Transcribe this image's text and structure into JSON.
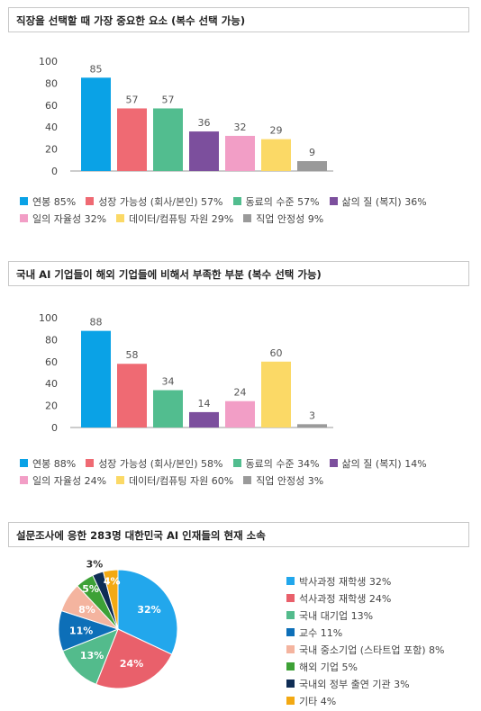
{
  "colors": [
    "#0aa2e6",
    "#ef6a73",
    "#52bd8f",
    "#7c4f9d",
    "#f29ec6",
    "#fbd966",
    "#9a9a9a"
  ],
  "pie_colors": [
    "#22a7ec",
    "#e9606b",
    "#53bb8c",
    "#0d6fb8",
    "#f4b49f",
    "#3da136",
    "#0f2d55",
    "#f3a913"
  ],
  "chart_data": [
    {
      "type": "bar",
      "title": "직장을 선택할 때 가장 중요한 요소 (복수 선택 가능)",
      "categories": [
        "연봉",
        "성장 가능성 (회사/본인)",
        "동료의 수준",
        "삶의 질 (복지)",
        "일의 자율성",
        "데이터/컴퓨팅 자원",
        "직업 안정성"
      ],
      "values": [
        85,
        57,
        57,
        36,
        32,
        29,
        9
      ],
      "value_labels": [
        "85",
        "57",
        "57",
        "36",
        "32",
        "29",
        "9"
      ],
      "yticks": [
        "100",
        "80",
        "60",
        "40",
        "20",
        "0"
      ],
      "ylim": [
        0,
        100
      ],
      "legend": [
        [
          "연봉 85%",
          "성장 가능성 (회사/본인) 57%",
          "동료의 수준 57%",
          "삶의 질 (복지) 36%"
        ],
        [
          "일의 자율성 32%",
          "데이터/컴퓨팅 자원 29%",
          "직업 안정성 9%"
        ]
      ]
    },
    {
      "type": "bar",
      "title": "국내 AI 기업들이 해외 기업들에 비해서 부족한 부분 (복수 선택 가능)",
      "categories": [
        "연봉",
        "성장 가능성 (회사/본인)",
        "동료의 수준",
        "삶의 질 (복지)",
        "일의 자율성",
        "데이터/컴퓨팅 자원",
        "직업 안정성"
      ],
      "values": [
        88,
        58,
        34,
        14,
        24,
        60,
        3
      ],
      "value_labels": [
        "88",
        "58",
        "34",
        "14",
        "24",
        "60",
        "3"
      ],
      "yticks": [
        "100",
        "80",
        "60",
        "40",
        "20",
        "0"
      ],
      "ylim": [
        0,
        100
      ],
      "legend": [
        [
          "연봉 88%",
          "성장 가능성 (회사/본인) 58%",
          "동료의 수준 34%",
          "삶의 질 (복지) 14%"
        ],
        [
          "일의 자율성 24%",
          "데이터/컴퓨팅 자원 60%",
          "직업 안정성 3%"
        ]
      ]
    },
    {
      "type": "pie",
      "title": "설문조사에 응한 283명 대한민국 AI 인재들의 현재 소속",
      "categories": [
        "박사과정 재학생",
        "석사과정 재학생",
        "국내 대기업",
        "교수",
        "국내 중소기업 (스타트업 포함)",
        "해외 기업",
        "국내외 정부 출연 기관",
        "기타"
      ],
      "values": [
        32,
        24,
        13,
        11,
        8,
        5,
        3,
        4
      ],
      "slice_labels": [
        "32%",
        "24%",
        "13%",
        "11%",
        "8%",
        "5%",
        "3%",
        "4%"
      ],
      "legend": [
        "박사과정 재학생 32%",
        "석사과정 재학생 24%",
        "국내 대기업 13%",
        "교수 11%",
        "국내 중소기업 (스타트업 포함) 8%",
        "해외 기업 5%",
        "국내외 정부 출연 기관 3%",
        "기타 4%"
      ]
    }
  ]
}
